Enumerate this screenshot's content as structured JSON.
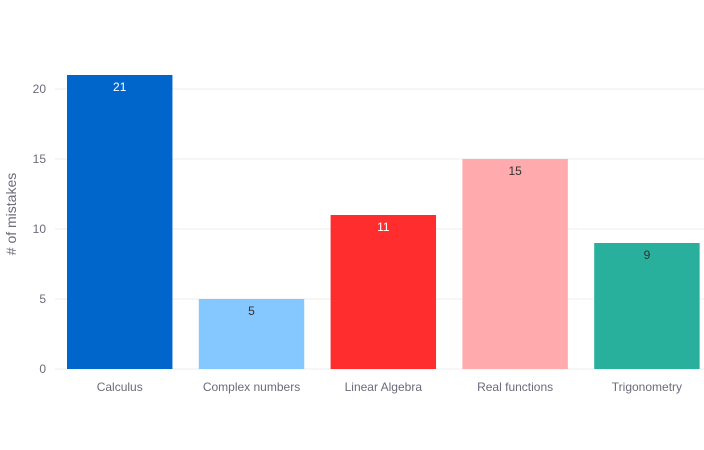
{
  "chart_data": {
    "type": "bar",
    "categories": [
      "Calculus",
      "Complex numbers",
      "Linear Algebra",
      "Real functions",
      "Trigonometry"
    ],
    "values": [
      21,
      5,
      11,
      15,
      9
    ],
    "colors": [
      "#0066cc",
      "#85c8ff",
      "#ff2d2e",
      "#ffabad",
      "#28b09d"
    ],
    "label_colors": [
      "#ffffff",
      "#333333",
      "#ffffff",
      "#333333",
      "#333333"
    ],
    "title": "",
    "xlabel": "",
    "ylabel": "# of mistakes",
    "ylim": [
      0,
      21
    ],
    "yticks": [
      0,
      5,
      10,
      15,
      20
    ],
    "grid": true,
    "legend": false
  }
}
